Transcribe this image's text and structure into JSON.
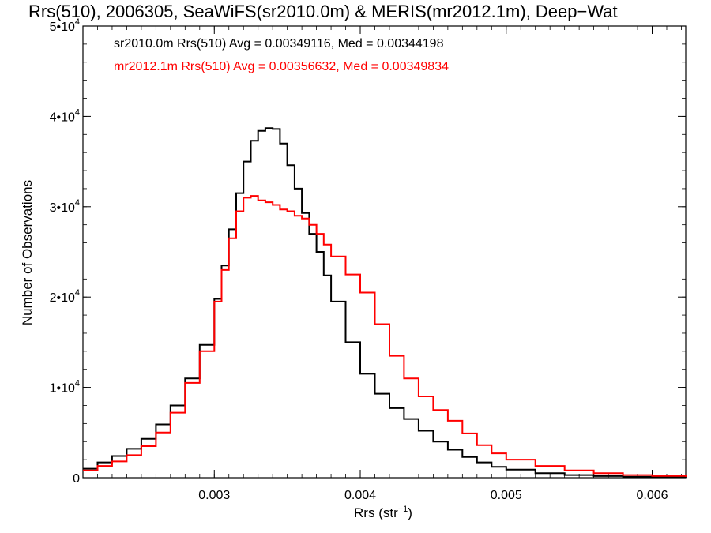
{
  "chart_data": {
    "type": "line",
    "title": "Rrs(510), 2006305, SeaWiFS(sr2010.0m) & MERIS(mr2012.1m), Deep−Wat",
    "xlabel": "Rrs (str",
    "xlabel_sup": "−1",
    "xlabel_end": ")",
    "ylabel": "Number of Observations",
    "xlim": [
      0.0021,
      0.00623
    ],
    "ylim": [
      0,
      50000
    ],
    "x_ticks": [
      {
        "value": 0.003,
        "label": "0.003"
      },
      {
        "value": 0.004,
        "label": "0.004"
      },
      {
        "value": 0.005,
        "label": "0.005"
      },
      {
        "value": 0.006,
        "label": "0.006"
      }
    ],
    "y_ticks": [
      {
        "value": 0,
        "base": "0",
        "exp": ""
      },
      {
        "value": 10000,
        "base": "1•10",
        "exp": "4"
      },
      {
        "value": 20000,
        "base": "2•10",
        "exp": "4"
      },
      {
        "value": 30000,
        "base": "3•10",
        "exp": "4"
      },
      {
        "value": 40000,
        "base": "4•10",
        "exp": "4"
      },
      {
        "value": 50000,
        "base": "5•10",
        "exp": "4"
      }
    ],
    "annotations": [
      {
        "text": "sr2010.0m Rrs(510) Avg = 0.00349116, Med = 0.00344198",
        "color": "#000000"
      },
      {
        "text": "mr2012.1m Rrs(510) Avg = 0.00356632, Med = 0.00349834",
        "color": "#ff0000"
      }
    ],
    "series": [
      {
        "color": "#000000",
        "x": [
          0.0021,
          0.0022,
          0.0023,
          0.0024,
          0.0025,
          0.0026,
          0.0027,
          0.0028,
          0.0029,
          0.003,
          0.00305,
          0.0031,
          0.00315,
          0.0032,
          0.00325,
          0.0033,
          0.00335,
          0.0034,
          0.00345,
          0.0035,
          0.00355,
          0.0036,
          0.00365,
          0.0037,
          0.00375,
          0.0038,
          0.0039,
          0.004,
          0.0041,
          0.0042,
          0.0043,
          0.0044,
          0.0045,
          0.0046,
          0.0047,
          0.0048,
          0.0049,
          0.005,
          0.0052,
          0.0054,
          0.0056,
          0.0058,
          0.006,
          0.00623
        ],
        "y": [
          1000,
          1700,
          2400,
          3200,
          4300,
          5900,
          8000,
          11000,
          14700,
          19800,
          23500,
          27500,
          31500,
          35000,
          37300,
          38400,
          38700,
          38600,
          37000,
          34600,
          32000,
          29300,
          27000,
          25000,
          22400,
          19500,
          15000,
          11500,
          9300,
          7700,
          6500,
          5200,
          4000,
          3100,
          2300,
          1700,
          1200,
          900,
          500,
          300,
          180,
          100,
          50,
          20
        ]
      },
      {
        "color": "#ff0000",
        "x": [
          0.0021,
          0.0022,
          0.0023,
          0.0024,
          0.0025,
          0.0026,
          0.0027,
          0.0028,
          0.0029,
          0.003,
          0.00305,
          0.0031,
          0.00315,
          0.0032,
          0.00325,
          0.0033,
          0.00335,
          0.0034,
          0.00345,
          0.0035,
          0.00355,
          0.0036,
          0.00365,
          0.0037,
          0.00375,
          0.0038,
          0.0039,
          0.004,
          0.0041,
          0.0042,
          0.0043,
          0.0044,
          0.0045,
          0.0046,
          0.0047,
          0.0048,
          0.0049,
          0.005,
          0.0052,
          0.0054,
          0.0056,
          0.0058,
          0.006,
          0.00623
        ],
        "y": [
          800,
          1300,
          1800,
          2500,
          3500,
          5000,
          7200,
          10500,
          14000,
          19500,
          23000,
          26500,
          29500,
          31000,
          31200,
          30700,
          30500,
          30200,
          29700,
          29500,
          29000,
          28700,
          28000,
          27000,
          25800,
          24500,
          22500,
          20500,
          17000,
          13500,
          11000,
          9000,
          7500,
          6300,
          4900,
          3600,
          2700,
          2000,
          1300,
          800,
          500,
          300,
          200,
          100
        ]
      }
    ]
  }
}
